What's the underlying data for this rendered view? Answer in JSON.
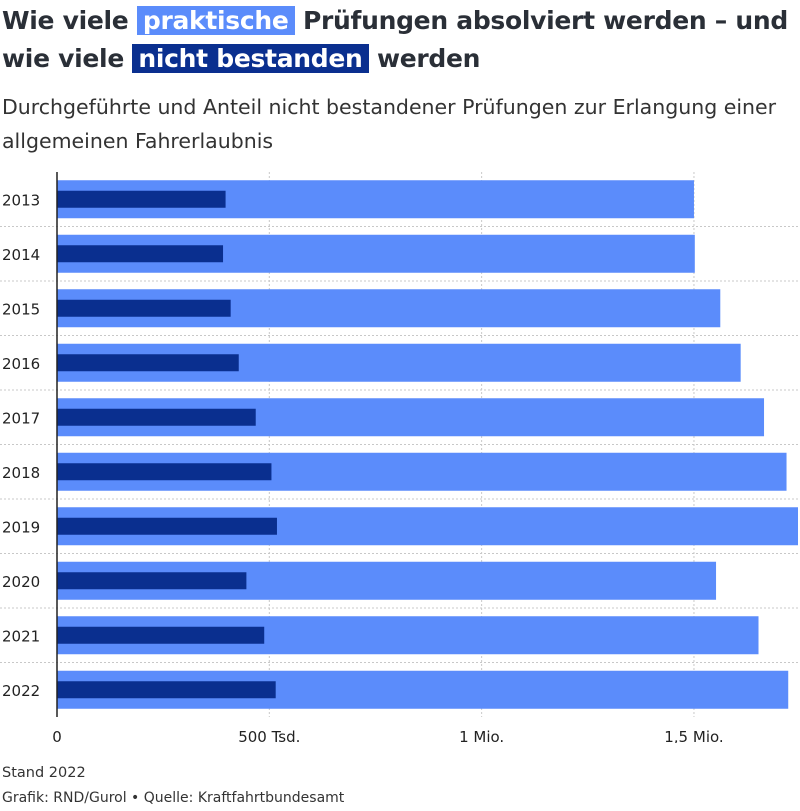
{
  "title": {
    "part1": "Wie viele",
    "highlight1": "praktische",
    "part2": "Prüfungen absolviert werden – und wie viele",
    "highlight2": "nicht bestanden",
    "part3": "werden"
  },
  "subtitle": "Durchgeführte und Anteil nicht bestandener Prüfungen zur Erlangung einer allgemeinen Fahrerlaubnis",
  "footer": {
    "stand": "Stand 2022",
    "credit": "Grafik: RND/Gurol • Quelle: Kraftfahrtbundesamt"
  },
  "colors": {
    "conducted": "#5b8cfb",
    "failed": "#0a2f8f",
    "grid": "#c8c8c8",
    "axis": "#222222"
  },
  "chart_data": {
    "type": "bar",
    "orientation": "horizontal",
    "title": "Wie viele praktische Prüfungen absolviert werden – und wie viele nicht bestanden werden",
    "subtitle": "Durchgeführte und Anteil nicht bestandener Prüfungen zur Erlangung einer allgemeinen Fahrerlaubnis",
    "categories": [
      "2013",
      "2014",
      "2015",
      "2016",
      "2017",
      "2018",
      "2019",
      "2020",
      "2021",
      "2022"
    ],
    "series": [
      {
        "name": "praktische",
        "color": "#5b8cfb",
        "values": [
          1500000,
          1502000,
          1562000,
          1610000,
          1665000,
          1718000,
          1745000,
          1552000,
          1652000,
          1722000
        ]
      },
      {
        "name": "nicht bestanden",
        "color": "#0a2f8f",
        "values": [
          397000,
          391000,
          409000,
          428000,
          468000,
          505000,
          518000,
          446000,
          488000,
          515000
        ]
      }
    ],
    "xlim": [
      0,
      1745000
    ],
    "xticks": [
      0,
      500000,
      1000000,
      1500000
    ],
    "xtick_labels": [
      "0",
      "500 Tsd.",
      "1 Mio.",
      "1,5 Mio."
    ],
    "grid": true,
    "legend": "in title"
  }
}
